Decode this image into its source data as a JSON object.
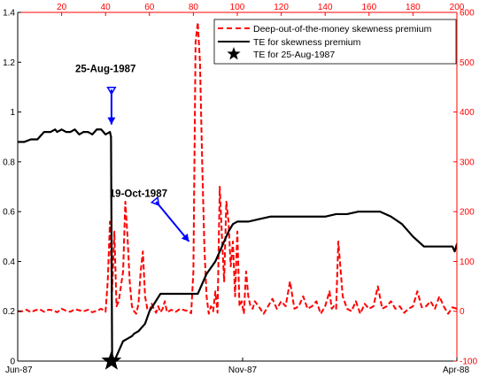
{
  "chart_data": {
    "type": "line",
    "title": "",
    "colors": {
      "left_axis": "#000000",
      "right_axis": "#ff0000",
      "te": "#000000",
      "skew": "#ff0000",
      "annotation": "#0000ff"
    },
    "bottom_axis": {
      "label": "",
      "tick_labels": [
        "Jun-87",
        "Nov-87",
        "Apr-88"
      ]
    },
    "top_axis": {
      "label": "",
      "range": [
        0,
        200
      ],
      "ticks": [
        20,
        40,
        60,
        80,
        100,
        120,
        140,
        160,
        180,
        200
      ]
    },
    "left_axis": {
      "label": "",
      "range": [
        0,
        1.4
      ],
      "ticks": [
        0,
        0.2,
        0.4,
        0.6,
        0.8,
        1,
        1.2,
        1.4
      ],
      "tick_labels": [
        "0",
        "0.2",
        "0.4",
        "0.6",
        "0.8",
        "1",
        "1.2",
        "1.4"
      ]
    },
    "right_axis": {
      "label": "",
      "range": [
        -100,
        600
      ],
      "ticks": [
        -100,
        0,
        100,
        200,
        300,
        400,
        500,
        600
      ],
      "tick_labels": [
        "-100",
        "0",
        "100",
        "200",
        "300",
        "400",
        "500",
        "600"
      ]
    },
    "grid": false,
    "legend_position": "top-right",
    "series": [
      {
        "name": "Deep-out-of-the-money skewness premium",
        "axis": "right",
        "style": "dashed",
        "x": [
          0,
          2,
          4,
          6,
          8,
          10,
          12,
          14,
          16,
          18,
          20,
          22,
          24,
          26,
          28,
          30,
          32,
          34,
          36,
          38,
          40,
          41,
          42,
          43,
          44,
          45,
          46,
          47,
          48,
          49,
          50,
          51,
          52,
          53,
          54,
          55,
          56,
          57,
          58,
          59,
          60,
          61,
          62,
          63,
          64,
          65,
          66,
          67,
          68,
          70,
          72,
          74,
          76,
          78,
          79,
          80,
          81,
          82,
          83,
          84,
          85,
          86,
          87,
          88,
          89,
          90,
          91,
          92,
          93,
          94,
          95,
          96,
          97,
          98,
          99,
          100,
          101,
          102,
          103,
          104,
          105,
          106,
          107,
          108,
          110,
          112,
          114,
          116,
          118,
          120,
          122,
          124,
          126,
          128,
          130,
          132,
          134,
          136,
          138,
          140,
          142,
          143,
          144,
          145,
          146,
          148,
          150,
          152,
          154,
          156,
          158,
          160,
          162,
          164,
          166,
          168,
          170,
          172,
          174,
          176,
          178,
          180,
          182,
          184,
          186,
          188,
          190,
          192,
          194,
          196,
          198,
          200,
          202
        ],
        "y": [
          0,
          0,
          3,
          -2,
          2,
          4,
          -1,
          3,
          2,
          -2,
          5,
          1,
          -1,
          4,
          2,
          0,
          3,
          -2,
          1,
          5,
          -1,
          60,
          180,
          40,
          160,
          10,
          20,
          50,
          80,
          220,
          150,
          60,
          10,
          0,
          -5,
          15,
          80,
          120,
          30,
          5,
          0,
          15,
          5,
          -3,
          10,
          -2,
          5,
          20,
          -2,
          3,
          -1,
          5,
          2,
          0,
          -4,
          80,
          540,
          580,
          500,
          300,
          130,
          30,
          -5,
          10,
          0,
          40,
          -3,
          250,
          150,
          60,
          220,
          180,
          90,
          140,
          30,
          160,
          10,
          20,
          -5,
          80,
          30,
          10,
          5,
          20,
          8,
          -5,
          10,
          25,
          5,
          20,
          10,
          60,
          5,
          10,
          30,
          5,
          10,
          20,
          -5,
          10,
          40,
          5,
          10,
          5,
          140,
          30,
          5,
          0,
          20,
          -5,
          15,
          5,
          10,
          50,
          5,
          10,
          20,
          5,
          10,
          -3,
          5,
          10,
          40,
          8,
          10,
          20,
          5,
          30,
          10,
          -5,
          8,
          5,
          10
        ]
      },
      {
        "name": "TE for skewness premium",
        "axis": "left",
        "style": "solid",
        "x": [
          0,
          3,
          6,
          9,
          12,
          15,
          17,
          18,
          20,
          22,
          24,
          26,
          28,
          30,
          32,
          34,
          36,
          38,
          40,
          42,
          42.5,
          43,
          44,
          45,
          46,
          47,
          48,
          50,
          52,
          53,
          55,
          58,
          60,
          65,
          70,
          75,
          80,
          82,
          86,
          90,
          92,
          94,
          96,
          98,
          100,
          105,
          110,
          115,
          120,
          125,
          128,
          130,
          135,
          140,
          145,
          150,
          155,
          160,
          165,
          170,
          175,
          180,
          185,
          190,
          195,
          198,
          199,
          200,
          201
        ],
        "y": [
          0.88,
          0.88,
          0.89,
          0.89,
          0.92,
          0.92,
          0.93,
          0.92,
          0.93,
          0.92,
          0.92,
          0.93,
          0.91,
          0.92,
          0.92,
          0.91,
          0.93,
          0.93,
          0.91,
          0.92,
          0.9,
          0,
          0,
          0.02,
          0.04,
          0.06,
          0.08,
          0.09,
          0.1,
          0.11,
          0.12,
          0.15,
          0.2,
          0.27,
          0.27,
          0.27,
          0.27,
          0.27,
          0.35,
          0.4,
          0.44,
          0.48,
          0.52,
          0.55,
          0.56,
          0.56,
          0.57,
          0.58,
          0.58,
          0.58,
          0.58,
          0.58,
          0.58,
          0.58,
          0.59,
          0.59,
          0.6,
          0.6,
          0.6,
          0.58,
          0.55,
          0.5,
          0.46,
          0.46,
          0.46,
          0.46,
          0.44,
          0.47,
          0.45
        ]
      },
      {
        "name": "TE for 25-Aug-1987",
        "axis": "left",
        "style": "marker",
        "x": [
          42.7
        ],
        "y": [
          0
        ]
      }
    ],
    "annotations": [
      {
        "text": "25-Aug-1987",
        "text_at": [
          40,
          1.16
        ],
        "arrow_from": [
          42.7,
          1.09
        ],
        "arrow_to": [
          42.7,
          0.95
        ]
      },
      {
        "text": "19-Oct-1987",
        "text_at": [
          55,
          0.66
        ],
        "arrow_from": [
          63,
          0.64
        ],
        "arrow_to": [
          78,
          0.48
        ]
      }
    ]
  }
}
